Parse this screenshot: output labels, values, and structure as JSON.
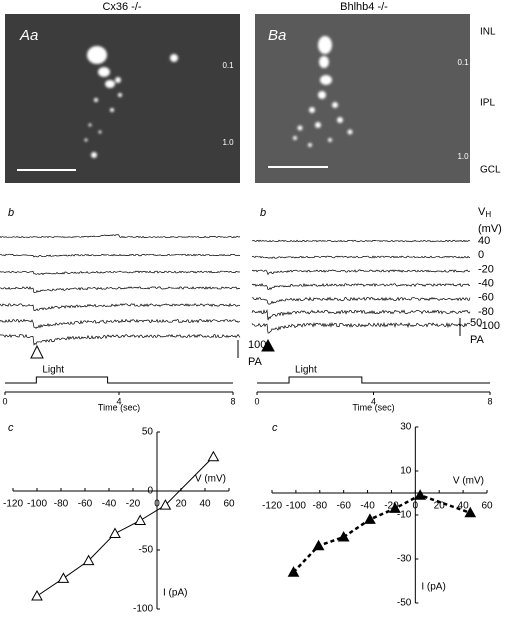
{
  "panels": [
    {
      "genotype": "Cx36 -/-",
      "image_label": "Aa",
      "trace_label": "b",
      "iv_label": "c",
      "scale_bar": {
        "value": 100,
        "unit": "PA"
      },
      "light": {
        "label": "Light",
        "start": 1.1,
        "end": 3.6
      },
      "time": {
        "label": "Time (sec)",
        "xlim": [
          0,
          8
        ],
        "ticks": [
          0,
          4,
          8
        ]
      }
    },
    {
      "genotype": "Bhlhb4 -/-",
      "image_label": "Ba",
      "trace_label": "b",
      "iv_label": "c",
      "scale_bar": {
        "value": 50,
        "unit": "PA"
      },
      "light": {
        "label": "Light",
        "start": 1.1,
        "end": 3.6
      },
      "time": {
        "label": "Time (sec)",
        "xlim": [
          0,
          8
        ],
        "ticks": [
          0,
          4,
          8
        ]
      }
    }
  ],
  "image_scale": {
    "top": "0.1",
    "bottom": "1.0"
  },
  "layers": [
    "INL",
    "IPL",
    "GCL"
  ],
  "holding": {
    "label": "V",
    "subscript": "H",
    "unit": "(mV)",
    "values": [
      40,
      0,
      -20,
      -40,
      -60,
      -80,
      -100
    ]
  },
  "chart_data": [
    {
      "type": "line",
      "x_label": "V (mV)",
      "y_label": "I (pA)",
      "x": [
        -100,
        -78,
        -57,
        -35,
        -14,
        7,
        47
      ],
      "values": [
        -89,
        -74,
        -59,
        -36,
        -25,
        -12,
        29
      ],
      "xlim": [
        -120,
        60
      ],
      "ylim": [
        -100,
        50
      ],
      "xticks": [
        -120,
        -100,
        -80,
        -60,
        -40,
        -20,
        0,
        20,
        40,
        60
      ],
      "yticks": [
        -100,
        -50,
        0,
        50
      ],
      "line_style": "solid",
      "marker_fill": "none",
      "color": "#000000"
    },
    {
      "type": "line",
      "x_label": "V (mV)",
      "y_label": "I (pA)",
      "x": [
        -102,
        -81,
        -60,
        -38,
        -17,
        4,
        46
      ],
      "values": [
        -36,
        -24,
        -20,
        -12,
        -7,
        -1,
        -9
      ],
      "xlim": [
        -120,
        60
      ],
      "ylim": [
        -50,
        30
      ],
      "xticks": [
        -120,
        -100,
        -80,
        -60,
        -40,
        -20,
        0,
        20,
        40,
        60
      ],
      "yticks": [
        -50,
        -30,
        -10,
        10,
        30
      ],
      "line_style": "dashed",
      "marker_fill": "#000000",
      "color": "#000000"
    }
  ]
}
